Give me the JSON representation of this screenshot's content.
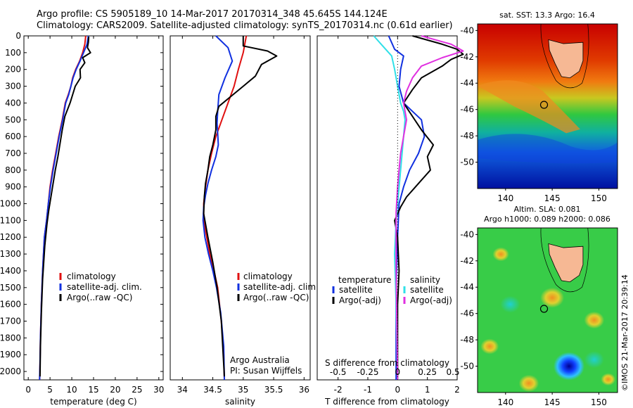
{
  "header": {
    "title_line1": "Argo profile: CS 5905189_10 14-Mar-2017 20170314_348 45.645S 144.124E",
    "title_line2": "Climatology: CARS2009. Satellite-adjusted climatology: synTS_20170314.nc (0.61d earlier)"
  },
  "stamp": "©IMOS 21-Mar-2017 20:39:14",
  "colors": {
    "climatology": "#e01010",
    "satellite": "#1030e0",
    "argo": "#000000",
    "satellite_s": "#30e0e8",
    "argo_s": "#e030e0",
    "land": "#f6b894"
  },
  "chart_data": [
    {
      "type": "line",
      "name": "temperature-profile",
      "xlabel": "temperature (deg C)",
      "ylim": [
        2050,
        0
      ],
      "xlim": [
        -1,
        31
      ],
      "xticks": [
        0,
        5,
        10,
        15,
        20,
        25,
        30
      ],
      "yticks": [
        0,
        100,
        200,
        300,
        400,
        500,
        600,
        700,
        800,
        900,
        1000,
        1100,
        1200,
        1300,
        1400,
        1500,
        1600,
        1700,
        1800,
        1900,
        2000
      ],
      "legend": [
        "climatology",
        "satellite-adj. clim.",
        "Argo(..raw -QC)"
      ],
      "series": [
        {
          "name": "climatology",
          "color_key": "climatology",
          "x": [
            13.2,
            13.0,
            12.5,
            11.8,
            10.9,
            10.2,
            9.8,
            9.2,
            8.5,
            7.8,
            7.0,
            6.3,
            5.6,
            5.0,
            4.6,
            4.2,
            3.7,
            3.3,
            3.0,
            2.8,
            2.7,
            2.6
          ],
          "y": [
            0,
            50,
            100,
            150,
            200,
            250,
            300,
            350,
            400,
            500,
            600,
            700,
            800,
            900,
            1000,
            1100,
            1200,
            1400,
            1600,
            1800,
            1950,
            2050
          ]
        },
        {
          "name": "satellite-adj. clim.",
          "color_key": "satellite",
          "x": [
            13.8,
            13.5,
            12.7,
            11.9,
            11.0,
            10.3,
            9.8,
            9.3,
            8.6,
            7.9,
            7.1,
            6.4,
            5.7,
            5.1,
            4.6,
            4.2,
            3.7,
            3.3,
            3.0,
            2.8,
            2.7,
            2.6
          ],
          "y": [
            0,
            50,
            100,
            150,
            200,
            250,
            300,
            350,
            400,
            500,
            600,
            700,
            800,
            900,
            1000,
            1100,
            1200,
            1400,
            1600,
            1800,
            1950,
            2050
          ]
        },
        {
          "name": "Argo(..raw -QC)",
          "color_key": "argo",
          "x": [
            13.9,
            13.8,
            13.6,
            14.3,
            12.5,
            13.0,
            11.9,
            12.0,
            10.8,
            10.2,
            9.6,
            8.4,
            7.8,
            7.3,
            6.8,
            6.2,
            5.7,
            5.2,
            4.7,
            4.3,
            3.8,
            3.3,
            3.0,
            2.8,
            2.7
          ],
          "y": [
            5,
            40,
            70,
            100,
            130,
            160,
            200,
            250,
            300,
            350,
            400,
            480,
            560,
            640,
            720,
            800,
            880,
            960,
            1040,
            1120,
            1250,
            1450,
            1650,
            1850,
            2030
          ]
        }
      ]
    },
    {
      "type": "line",
      "name": "salinity-profile",
      "xlabel": "salinity",
      "ylim": [
        2050,
        0
      ],
      "xlim": [
        33.8,
        36.1
      ],
      "xticks": [
        34,
        34.5,
        35,
        35.5,
        36
      ],
      "xticklabels": [
        "34",
        "34.5",
        "35",
        "35.5",
        "36"
      ],
      "legend": [
        "climatology",
        "satellite-adj. clim.",
        "Argo(..raw -QC)"
      ],
      "annotation": [
        "Argo Australia",
        "PI: Susan Wijffels"
      ],
      "series": [
        {
          "name": "climatology",
          "color_key": "climatology",
          "x": [
            35.05,
            35.0,
            34.92,
            34.85,
            34.75,
            34.65,
            34.55,
            34.48,
            34.42,
            34.38,
            34.35,
            34.35,
            34.4,
            34.45,
            34.52,
            34.58,
            34.64,
            34.68,
            34.69
          ],
          "y": [
            0,
            100,
            200,
            300,
            400,
            500,
            600,
            700,
            800,
            900,
            1000,
            1100,
            1200,
            1300,
            1400,
            1500,
            1700,
            1900,
            2050
          ]
        },
        {
          "name": "satellite-adj. clim.",
          "color_key": "satellite",
          "x": [
            34.55,
            34.75,
            34.82,
            34.7,
            34.6,
            34.58,
            34.57,
            34.58,
            34.59,
            34.55,
            34.48,
            34.42,
            34.38,
            34.35,
            34.34,
            34.37,
            34.43,
            34.5,
            34.56,
            34.63,
            34.68,
            34.69
          ],
          "y": [
            0,
            70,
            150,
            250,
            350,
            450,
            520,
            580,
            650,
            720,
            800,
            880,
            950,
            1020,
            1100,
            1200,
            1300,
            1400,
            1500,
            1650,
            1850,
            2050
          ]
        },
        {
          "name": "Argo(..raw -QC)",
          "color_key": "argo",
          "x": [
            35.0,
            35.0,
            35.4,
            35.55,
            35.3,
            35.2,
            35.0,
            34.8,
            34.6,
            34.55,
            34.55,
            34.5,
            34.45,
            34.42,
            34.38,
            34.36,
            34.35,
            34.42,
            34.5,
            34.57,
            34.64,
            34.69
          ],
          "y": [
            0,
            60,
            90,
            120,
            170,
            240,
            300,
            360,
            420,
            480,
            560,
            650,
            720,
            800,
            880,
            960,
            1060,
            1200,
            1350,
            1500,
            1700,
            2030
          ]
        }
      ]
    },
    {
      "type": "line",
      "name": "difference-profile",
      "xlabel": "T difference from climatology",
      "xlabel2": "S difference from climatology",
      "ylim": [
        2050,
        0
      ],
      "xlim": [
        -2.7,
        2.0
      ],
      "xticks": [
        -2,
        -1,
        0,
        1,
        2
      ],
      "xticks2": [
        -2,
        -1,
        0,
        1,
        2
      ],
      "xticklabels2": [
        "-0.5",
        "-0.25",
        "0",
        "0.25",
        "0.5"
      ],
      "legend_titles": [
        "temperature",
        "salinity"
      ],
      "legend": [
        "satellite",
        "Argo(-adj)",
        "satellite",
        "Argo(-adj)"
      ],
      "series": [
        {
          "name": "temperature satellite",
          "color_key": "satellite",
          "x": [
            -0.3,
            -0.1,
            0.2,
            0.1,
            0.05,
            0.2,
            0.5,
            0.8,
            0.9,
            0.7,
            0.4,
            0.2,
            0.05,
            0.0,
            -0.05,
            -0.05,
            -0.05
          ],
          "y": [
            0,
            80,
            120,
            200,
            300,
            400,
            450,
            500,
            600,
            700,
            800,
            900,
            1000,
            1200,
            1500,
            1800,
            2050
          ]
        },
        {
          "name": "temperature Argo(-adj)",
          "color_key": "argo",
          "x": [
            0.5,
            1.5,
            2.0,
            2.2,
            1.8,
            1.5,
            0.8,
            0.5,
            0.2,
            0.8,
            1.2,
            1.0,
            1.1,
            0.8,
            0.6,
            0.3,
            0.1,
            -0.1,
            0.0,
            0.05,
            0.0,
            0.0,
            0.0
          ],
          "y": [
            0,
            50,
            80,
            110,
            140,
            180,
            250,
            320,
            400,
            560,
            650,
            720,
            800,
            860,
            900,
            960,
            1020,
            1100,
            1200,
            1400,
            1600,
            1850,
            2050
          ]
        },
        {
          "name": "salinity satellite",
          "color_key": "satellite_s",
          "x": [
            -0.8,
            -0.5,
            -0.2,
            -0.1,
            0.0,
            0.1,
            0.2,
            0.25,
            0.2,
            0.15,
            0.1,
            0.05,
            0.0,
            -0.05,
            -0.1,
            -0.05,
            0.0
          ],
          "y": [
            0,
            60,
            120,
            200,
            300,
            400,
            450,
            500,
            600,
            700,
            800,
            900,
            1000,
            1100,
            1300,
            1600,
            2050
          ]
        },
        {
          "name": "salinity Argo(-adj)",
          "color_key": "argo_s",
          "x": [
            0.8,
            1.8,
            2.2,
            1.5,
            0.8,
            0.5,
            0.3,
            0.2,
            0.3,
            0.2,
            0.1,
            0.05,
            0.0,
            -0.05,
            -0.05,
            0.0
          ],
          "y": [
            0,
            50,
            90,
            130,
            180,
            250,
            330,
            400,
            500,
            600,
            700,
            800,
            900,
            1050,
            1400,
            2050
          ]
        }
      ]
    },
    {
      "type": "heatmap",
      "name": "sst-map",
      "title": "sat. SST: 13.3  Argo: 16.4",
      "xlim": [
        137,
        152
      ],
      "ylim": [
        -52,
        -39.5
      ],
      "xticks": [
        140,
        145,
        150
      ],
      "yticks": [
        -40,
        -42,
        -44,
        -46,
        -48,
        -50
      ],
      "float_position": {
        "lon": 144.124,
        "lat": -45.645
      }
    },
    {
      "type": "heatmap",
      "name": "sla-map",
      "title": "Altim. SLA: 0.081",
      "title2": "Argo h1000: 0.089 h2000: 0.086",
      "xlim": [
        137,
        152
      ],
      "ylim": [
        -52,
        -39.5
      ],
      "xticks": [
        140,
        145,
        150
      ],
      "yticks": [
        -40,
        -42,
        -44,
        -46,
        -48,
        -50
      ],
      "float_position": {
        "lon": 144.124,
        "lat": -45.645
      }
    }
  ]
}
